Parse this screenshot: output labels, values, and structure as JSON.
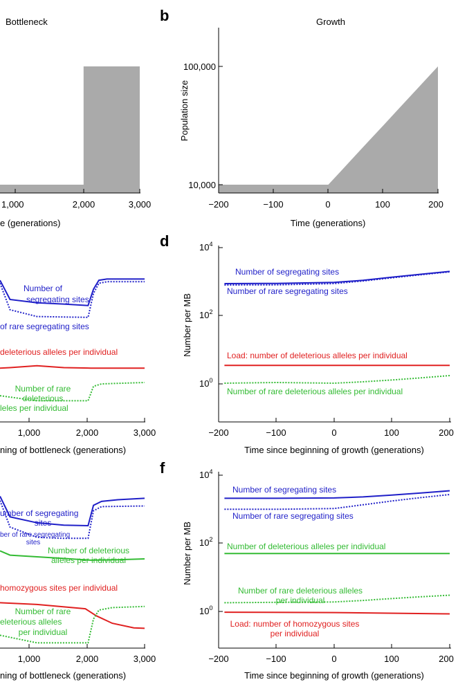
{
  "colors": {
    "blue": "#1f1fc8",
    "red": "#e02020",
    "green": "#33bb33",
    "gray": "#aaaaaa",
    "axis": "#000000"
  },
  "chart_data": [
    {
      "panel": "a",
      "type": "area",
      "title": "Bottleneck",
      "xlabel": "Time (generations)",
      "ylabel": "",
      "xlim": [
        -200,
        3000
      ],
      "xticks": [
        1000,
        2000,
        3000
      ],
      "xtick_labels": [
        "1,000",
        "2,000",
        "3,000"
      ],
      "ylim": [
        7000,
        200000
      ],
      "yscale": "log",
      "series": [
        {
          "x": [
            -200,
            2000,
            2000,
            3000
          ],
          "y": [
            10000,
            10000,
            100000,
            100000
          ]
        }
      ]
    },
    {
      "panel": "b",
      "type": "area",
      "title": "Growth",
      "xlabel": "Time (generations)",
      "ylabel": "Population size",
      "xlim": [
        -200,
        200
      ],
      "xticks": [
        -200,
        -100,
        0,
        100,
        200
      ],
      "xtick_labels": [
        "−200",
        "−100",
        "0",
        "100",
        "200"
      ],
      "ylim": [
        7000,
        200000
      ],
      "yscale": "log",
      "yticks": [
        10000,
        100000
      ],
      "ytick_labels": [
        "10,000",
        "100,000"
      ],
      "series": [
        {
          "x": [
            -200,
            0,
            25,
            50,
            75,
            100,
            125,
            150,
            175,
            200
          ],
          "y": [
            10000,
            10000,
            13300,
            17800,
            23700,
            31600,
            42200,
            56200,
            75000,
            100000
          ]
        }
      ]
    },
    {
      "panel": "c",
      "type": "line",
      "title": "",
      "xlabel": "Time since beginning of bottleneck (generations)",
      "ylabel": "",
      "xlim": [
        -200,
        3000
      ],
      "xticks": [
        1000,
        2000,
        3000
      ],
      "xtick_labels": [
        "1,000",
        "2,000",
        "3,000"
      ],
      "ylim": [
        0.1,
        10000
      ],
      "yscale": "log",
      "series": [
        {
          "name": "Number of segregating sites",
          "color": "blue",
          "dash": false,
          "x": [
            -200,
            500,
            1000,
            1500,
            1950,
            2050,
            2150,
            2300,
            3000
          ],
          "y": [
            1100,
            300,
            240,
            220,
            200,
            600,
            1100,
            1200,
            1200
          ]
        },
        {
          "name": "Number of rare segregating sites",
          "color": "blue",
          "dash": true,
          "x": [
            -200,
            500,
            1000,
            1500,
            1950,
            2050,
            2150,
            2300,
            3000
          ],
          "y": [
            900,
            150,
            95,
            92,
            90,
            450,
            900,
            1000,
            1000
          ]
        },
        {
          "name": "Load: number of deleterious alleles per individual",
          "color": "red",
          "dash": false,
          "x": [
            -200,
            500,
            1000,
            1500,
            2000,
            2500,
            3000
          ],
          "y": [
            2.9,
            3.0,
            3.4,
            3.0,
            2.9,
            2.9,
            2.9
          ]
        },
        {
          "name": "Number of rare deleterious alleles per individual",
          "color": "green",
          "dash": true,
          "x": [
            -200,
            1000,
            1950,
            2050,
            2200,
            3000
          ],
          "y": [
            0.45,
            0.32,
            0.32,
            0.85,
            1.0,
            1.1
          ]
        }
      ]
    },
    {
      "panel": "d",
      "type": "line",
      "title": "",
      "xlabel": "Time since beginning of growth (generations)",
      "ylabel": "Number per MB",
      "xlim": [
        -200,
        200
      ],
      "xticks": [
        -200,
        -100,
        0,
        100,
        200
      ],
      "xtick_labels": [
        "−200",
        "−100",
        "0",
        "100",
        "200"
      ],
      "ylim": [
        0.1,
        10000
      ],
      "yscale": "log",
      "yticks": [
        1,
        100,
        10000
      ],
      "series": [
        {
          "name": "Number of segregating sites",
          "color": "blue",
          "dash": false,
          "x": [
            -190,
            -100,
            0,
            50,
            100,
            150,
            200
          ],
          "y": [
            880,
            890,
            950,
            1100,
            1350,
            1650,
            2000
          ]
        },
        {
          "name": "Number of rare segregating sites",
          "color": "blue",
          "dash": true,
          "x": [
            -190,
            -100,
            0,
            50,
            100,
            150,
            200
          ],
          "y": [
            800,
            810,
            880,
            1050,
            1300,
            1600,
            1950
          ]
        },
        {
          "name": "Load: number of deleterious alleles per individual",
          "color": "red",
          "dash": false,
          "x": [
            -190,
            0,
            200
          ],
          "y": [
            3.5,
            3.5,
            3.5
          ]
        },
        {
          "name": "Number of rare deleterious alleles per individual",
          "color": "green",
          "dash": true,
          "x": [
            -190,
            -100,
            0,
            50,
            100,
            150,
            200
          ],
          "y": [
            1.05,
            1.1,
            1.05,
            1.15,
            1.3,
            1.5,
            1.75
          ]
        }
      ]
    },
    {
      "panel": "e",
      "type": "line",
      "title": "",
      "xlabel": "Time since beginning of bottleneck (generations)",
      "ylabel": "",
      "xlim": [
        -200,
        3000
      ],
      "xticks": [
        1000,
        2000,
        3000
      ],
      "xtick_labels": [
        "1,000",
        "2,000",
        "3,000"
      ],
      "ylim": [
        0.1,
        10000
      ],
      "yscale": "log",
      "series": [
        {
          "name": "Number of segregating sites",
          "color": "blue",
          "dash": false,
          "x": [
            -200,
            500,
            1000,
            1500,
            1950,
            2050,
            2200,
            2500,
            3000
          ],
          "y": [
            2400,
            600,
            400,
            340,
            330,
            1300,
            1700,
            1900,
            2100
          ]
        },
        {
          "name": "Number of rare segregating sites",
          "color": "blue",
          "dash": true,
          "x": [
            -200,
            500,
            1000,
            1500,
            1950,
            2050,
            2200,
            3000
          ],
          "y": [
            1800,
            300,
            150,
            140,
            140,
            900,
            1200,
            1250
          ]
        },
        {
          "name": "Number of deleterious alleles per individual",
          "color": "green",
          "dash": false,
          "x": [
            -200,
            500,
            1500,
            2000,
            2500,
            3000
          ],
          "y": [
            60,
            45,
            36,
            32,
            33,
            35
          ]
        },
        {
          "name": "Load: number of homozygous sites per individual",
          "color": "red",
          "dash": false,
          "x": [
            -200,
            1000,
            1900,
            2100,
            2400,
            2800,
            3000
          ],
          "y": [
            1.8,
            1.6,
            1.2,
            0.75,
            0.45,
            0.33,
            0.32
          ]
        },
        {
          "name": "Number of rare deleterious alleles per individual",
          "color": "green",
          "dash": true,
          "x": [
            -200,
            1000,
            1950,
            2050,
            2150,
            2400,
            3000
          ],
          "y": [
            0.2,
            0.12,
            0.12,
            0.6,
            1.1,
            1.3,
            1.4
          ]
        }
      ]
    },
    {
      "panel": "f",
      "type": "line",
      "title": "",
      "xlabel": "Time since beginning of growth (generations)",
      "ylabel": "Number per MB",
      "xlim": [
        -200,
        200
      ],
      "xticks": [
        -200,
        -100,
        0,
        100,
        200
      ],
      "xtick_labels": [
        "−200",
        "−100",
        "0",
        "100",
        "200"
      ],
      "ylim": [
        0.1,
        10000
      ],
      "yscale": "log",
      "yticks": [
        1,
        100,
        10000
      ],
      "series": [
        {
          "name": "Number of segregating sites",
          "color": "blue",
          "dash": false,
          "x": [
            -190,
            -100,
            0,
            50,
            100,
            150,
            200
          ],
          "y": [
            2100,
            2100,
            2150,
            2300,
            2600,
            3000,
            3500
          ]
        },
        {
          "name": "Number of rare segregating sites",
          "color": "blue",
          "dash": true,
          "x": [
            -190,
            -100,
            0,
            50,
            100,
            150,
            200
          ],
          "y": [
            1000,
            1000,
            1050,
            1350,
            1750,
            2200,
            2700
          ]
        },
        {
          "name": "Number of deleterious alleles per individual",
          "color": "green",
          "dash": false,
          "x": [
            -190,
            0,
            200
          ],
          "y": [
            50,
            50,
            50
          ]
        },
        {
          "name": "Number of rare deleterious alleles per individual",
          "color": "green",
          "dash": true,
          "x": [
            -190,
            -100,
            0,
            50,
            100,
            150,
            200
          ],
          "y": [
            1.8,
            1.85,
            1.9,
            2.1,
            2.4,
            2.7,
            3.0
          ]
        },
        {
          "name": "Load: number of homozygous sites per individual",
          "color": "red",
          "dash": false,
          "x": [
            -190,
            0,
            200
          ],
          "y": [
            0.95,
            0.93,
            0.85
          ]
        }
      ]
    }
  ],
  "panels": {
    "b": {
      "letter": "b"
    },
    "d": {
      "letter": "d"
    },
    "f": {
      "letter": "f"
    }
  },
  "tick_labels": {
    "ten_k": "10,000",
    "hundred_k": "100,000"
  },
  "annotations": {
    "c": {
      "seg1": "Number of",
      "seg2": "segregating sites",
      "rare_seg": "of rare segregating sites",
      "load": "deleterious alleles per individual",
      "rdel1": "Number of rare",
      "rdel2": "deleterious",
      "rdel3": "leles per individual"
    },
    "d": {
      "seg": "Number of segregating sites",
      "rare_seg": "Number of rare segregating sites",
      "load": "Load: number of deleterious alleles per individual",
      "rdel": "Number of rare deleterious alleles per individual"
    },
    "e": {
      "seg1": "umber of segregating",
      "seg2": "sites",
      "rare1": "ber of rare segregating",
      "rare2": "sites",
      "del1": "Number of deleterious",
      "del2": "alleles per individual",
      "hom": "homozygous sites per individual",
      "rdel1": "Number of rare",
      "rdel2": "eleterious alleles",
      "rdel3": "per individual"
    },
    "f": {
      "seg": "Number of segregating sites",
      "rare_seg": "Number of rare segregating sites",
      "del": "Number of deleterious alleles per individual",
      "rdel1": "Number of rare deleterious alleles",
      "rdel2": "per individual",
      "load1": "Load: number of homozygous sites",
      "load2": "per individual"
    }
  },
  "partial_labels": {
    "a_title": "Bottleneck",
    "a_xlabel": "e (generations)",
    "a_tick0": "1,000",
    "c_xlabel": "ning of bottleneck (generations)",
    "e_xlabel": "ning of bottleneck (generations)"
  }
}
